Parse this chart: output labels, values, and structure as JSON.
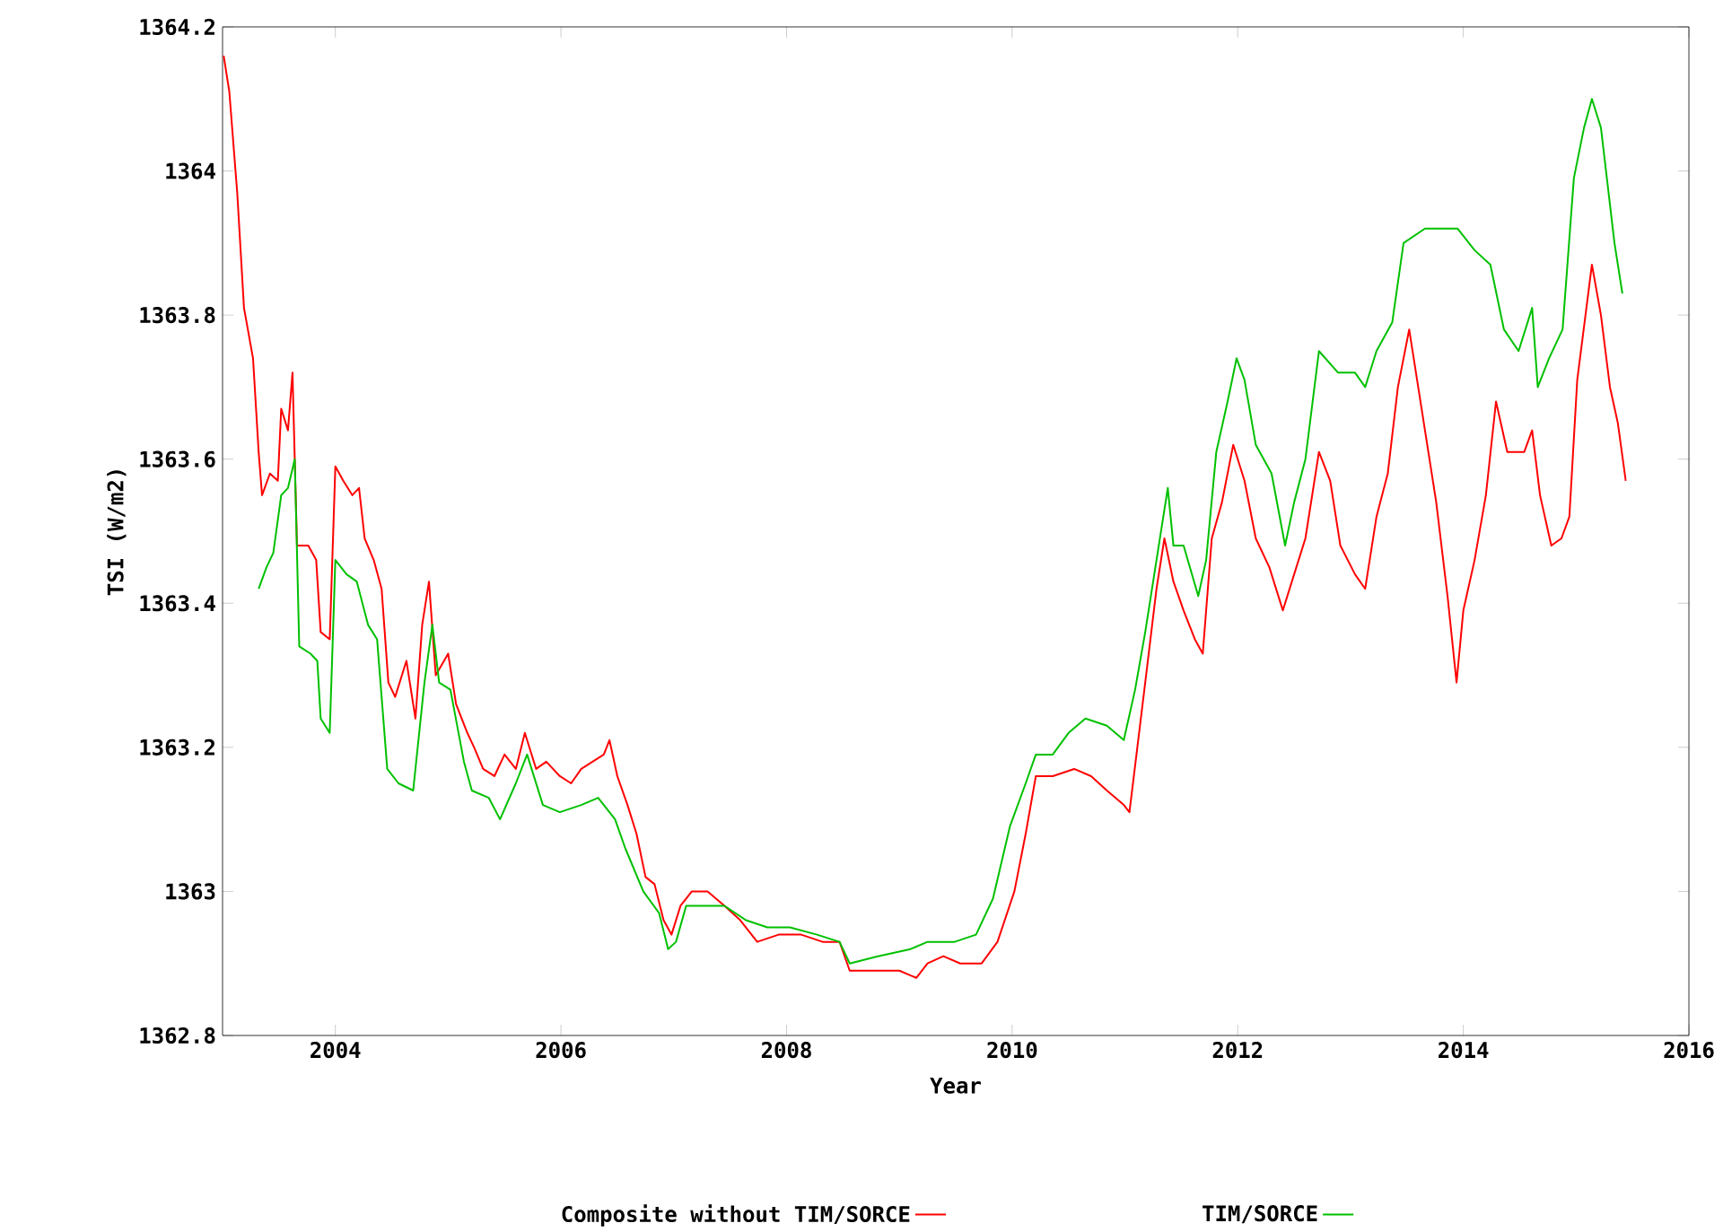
{
  "chart_data": {
    "type": "line",
    "xlabel": "Year",
    "ylabel": "TSI (W/m2)",
    "xlim": [
      2003,
      2016
    ],
    "ylim": [
      1362.8,
      1364.2
    ],
    "xticks": [
      2004,
      2006,
      2008,
      2010,
      2012,
      2014,
      2016
    ],
    "yticks": [
      1362.8,
      1363,
      1363.2,
      1363.4,
      1363.6,
      1363.8,
      1364,
      1364.2
    ],
    "legend": "bottom",
    "series": [
      {
        "name": "Composite without TIM/SORCE",
        "color": "#ff0000",
        "x": [
          2003.01,
          2003.06,
          2003.13,
          2003.19,
          2003.27,
          2003.32,
          2003.35,
          2003.42,
          2003.49,
          2003.52,
          2003.58,
          2003.62,
          2003.66,
          2003.76,
          2003.83,
          2003.87,
          2003.95,
          2004.0,
          2004.07,
          2004.15,
          2004.21,
          2004.26,
          2004.34,
          2004.41,
          2004.47,
          2004.53,
          2004.63,
          2004.71,
          2004.77,
          2004.83,
          2004.89,
          2005.0,
          2005.07,
          2005.17,
          2005.23,
          2005.31,
          2005.41,
          2005.5,
          2005.6,
          2005.68,
          2005.78,
          2005.87,
          2005.99,
          2006.09,
          2006.18,
          2006.28,
          2006.38,
          2006.43,
          2006.5,
          2006.59,
          2006.67,
          2006.75,
          2006.83,
          2006.91,
          2006.98,
          2007.06,
          2007.16,
          2007.3,
          2007.45,
          2007.59,
          2007.74,
          2007.93,
          2008.13,
          2008.32,
          2008.47,
          2008.56,
          2008.81,
          2009.0,
          2009.15,
          2009.25,
          2009.39,
          2009.54,
          2009.73,
          2009.87,
          2010.02,
          2010.12,
          2010.21,
          2010.36,
          2010.55,
          2010.7,
          2010.84,
          2010.99,
          2011.04,
          2011.11,
          2011.18,
          2011.28,
          2011.35,
          2011.43,
          2011.52,
          2011.62,
          2011.69,
          2011.77,
          2011.86,
          2011.96,
          2012.06,
          2012.16,
          2012.28,
          2012.4,
          2012.5,
          2012.6,
          2012.72,
          2012.82,
          2012.91,
          2013.04,
          2013.13,
          2013.23,
          2013.33,
          2013.42,
          2013.52,
          2013.66,
          2013.76,
          2013.86,
          2013.94,
          2014.0,
          2014.1,
          2014.2,
          2014.29,
          2014.39,
          2014.54,
          2014.61,
          2014.68,
          2014.78,
          2014.87,
          2014.94,
          2015.01,
          2015.14,
          2015.22,
          2015.3,
          2015.37,
          2015.44
        ],
        "values": [
          1364.16,
          1364.11,
          1363.97,
          1363.81,
          1363.74,
          1363.61,
          1363.55,
          1363.58,
          1363.57,
          1363.67,
          1363.64,
          1363.72,
          1363.48,
          1363.48,
          1363.46,
          1363.36,
          1363.35,
          1363.59,
          1363.57,
          1363.55,
          1363.56,
          1363.49,
          1363.46,
          1363.42,
          1363.29,
          1363.27,
          1363.32,
          1363.24,
          1363.37,
          1363.43,
          1363.3,
          1363.33,
          1363.26,
          1363.22,
          1363.2,
          1363.17,
          1363.16,
          1363.19,
          1363.17,
          1363.22,
          1363.17,
          1363.18,
          1363.16,
          1363.15,
          1363.17,
          1363.18,
          1363.19,
          1363.21,
          1363.16,
          1363.12,
          1363.08,
          1363.02,
          1363.01,
          1362.96,
          1362.94,
          1362.98,
          1363.0,
          1363.0,
          1362.98,
          1362.96,
          1362.93,
          1362.94,
          1362.94,
          1362.93,
          1362.93,
          1362.89,
          1362.89,
          1362.89,
          1362.88,
          1362.9,
          1362.91,
          1362.9,
          1362.9,
          1362.93,
          1363.0,
          1363.08,
          1363.16,
          1363.16,
          1363.17,
          1363.16,
          1363.14,
          1363.12,
          1363.11,
          1363.2,
          1363.29,
          1363.42,
          1363.49,
          1363.43,
          1363.39,
          1363.35,
          1363.33,
          1363.49,
          1363.54,
          1363.62,
          1363.57,
          1363.49,
          1363.45,
          1363.39,
          1363.44,
          1363.49,
          1363.61,
          1363.57,
          1363.48,
          1363.44,
          1363.42,
          1363.52,
          1363.58,
          1363.7,
          1363.78,
          1363.64,
          1363.54,
          1363.41,
          1363.29,
          1363.39,
          1363.46,
          1363.55,
          1363.68,
          1363.61,
          1363.61,
          1363.64,
          1363.55,
          1363.48,
          1363.49,
          1363.52,
          1363.71,
          1363.87,
          1363.8,
          1363.7,
          1363.65,
          1363.57
        ]
      },
      {
        "name": "TIM/SORCE",
        "color": "#00c000",
        "x": [
          2003.32,
          2003.39,
          2003.45,
          2003.52,
          2003.58,
          2003.64,
          2003.68,
          2003.78,
          2003.84,
          2003.87,
          2003.95,
          2004.0,
          2004.1,
          2004.19,
          2004.29,
          2004.37,
          2004.46,
          2004.56,
          2004.69,
          2004.79,
          2004.86,
          2004.92,
          2005.02,
          2005.14,
          2005.21,
          2005.36,
          2005.46,
          2005.6,
          2005.7,
          2005.84,
          2005.99,
          2006.18,
          2006.33,
          2006.48,
          2006.57,
          2006.73,
          2006.87,
          2006.95,
          2007.02,
          2007.11,
          2007.26,
          2007.45,
          2007.64,
          2007.83,
          2008.03,
          2008.27,
          2008.47,
          2008.56,
          2008.81,
          2009.1,
          2009.25,
          2009.49,
          2009.68,
          2009.83,
          2009.98,
          2010.12,
          2010.21,
          2010.36,
          2010.5,
          2010.65,
          2010.84,
          2010.99,
          2011.09,
          2011.18,
          2011.28,
          2011.38,
          2011.43,
          2011.52,
          2011.65,
          2011.72,
          2011.81,
          2011.91,
          2011.99,
          2012.06,
          2012.16,
          2012.3,
          2012.42,
          2012.5,
          2012.6,
          2012.72,
          2012.89,
          2013.04,
          2013.13,
          2013.23,
          2013.37,
          2013.47,
          2013.66,
          2013.95,
          2014.1,
          2014.24,
          2014.36,
          2014.49,
          2014.61,
          2014.66,
          2014.76,
          2014.88,
          2014.98,
          2015.07,
          2015.14,
          2015.22,
          2015.34,
          2015.41
        ],
        "values": [
          1363.42,
          1363.45,
          1363.47,
          1363.55,
          1363.56,
          1363.6,
          1363.34,
          1363.33,
          1363.32,
          1363.24,
          1363.22,
          1363.46,
          1363.44,
          1363.43,
          1363.37,
          1363.35,
          1363.17,
          1363.15,
          1363.14,
          1363.29,
          1363.37,
          1363.29,
          1363.28,
          1363.18,
          1363.14,
          1363.13,
          1363.1,
          1363.15,
          1363.19,
          1363.12,
          1363.11,
          1363.12,
          1363.13,
          1363.1,
          1363.06,
          1363.0,
          1362.97,
          1362.92,
          1362.93,
          1362.98,
          1362.98,
          1362.98,
          1362.96,
          1362.95,
          1362.95,
          1362.94,
          1362.93,
          1362.9,
          1362.91,
          1362.92,
          1362.93,
          1362.93,
          1362.94,
          1362.99,
          1363.09,
          1363.15,
          1363.19,
          1363.19,
          1363.22,
          1363.24,
          1363.23,
          1363.21,
          1363.28,
          1363.36,
          1363.46,
          1363.56,
          1363.48,
          1363.48,
          1363.41,
          1363.46,
          1363.61,
          1363.68,
          1363.74,
          1363.71,
          1363.62,
          1363.58,
          1363.48,
          1363.54,
          1363.6,
          1363.75,
          1363.72,
          1363.72,
          1363.7,
          1363.75,
          1363.79,
          1363.9,
          1363.92,
          1363.92,
          1363.89,
          1363.87,
          1363.78,
          1363.75,
          1363.81,
          1363.7,
          1363.74,
          1363.78,
          1363.99,
          1364.06,
          1364.1,
          1364.06,
          1363.9,
          1363.83
        ]
      }
    ]
  }
}
